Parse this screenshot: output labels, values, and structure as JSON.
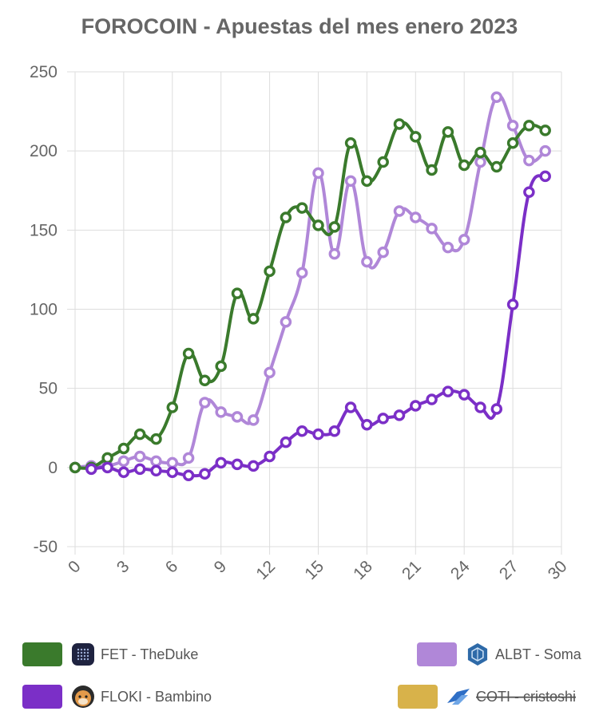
{
  "chart_data": {
    "type": "line",
    "title": "FOROCOIN - Apuestas del mes enero 2023",
    "xlim": [
      0,
      30
    ],
    "ylim": [
      -50,
      250
    ],
    "x_ticks": [
      "0",
      "3",
      "6",
      "9",
      "12",
      "15",
      "18",
      "21",
      "24",
      "27",
      "30"
    ],
    "y_ticks": [
      "250",
      "200",
      "150",
      "100",
      "50",
      "0",
      "-50"
    ],
    "series": [
      {
        "name": "FET - TheDuke",
        "color": "#3a7a2c",
        "icon": "fet-icon",
        "hidden": false,
        "x": [
          0,
          1,
          2,
          3,
          4,
          5,
          6,
          7,
          8,
          9,
          10,
          11,
          12,
          13,
          14,
          15,
          16,
          17,
          18,
          19,
          20,
          21,
          22,
          23,
          24,
          25,
          26,
          27,
          28,
          29
        ],
        "values": [
          0,
          0,
          6,
          12,
          21,
          18,
          38,
          72,
          55,
          64,
          110,
          94,
          124,
          158,
          164,
          153,
          152,
          205,
          181,
          193,
          217,
          209,
          188,
          212,
          191,
          199,
          190,
          205,
          216,
          213
        ]
      },
      {
        "name": "ALBT - Soma",
        "color": "#b087d8",
        "icon": "albt-icon",
        "hidden": false,
        "x": [
          0,
          1,
          2,
          3,
          4,
          5,
          6,
          7,
          8,
          9,
          10,
          11,
          12,
          13,
          14,
          15,
          16,
          17,
          18,
          19,
          20,
          21,
          22,
          23,
          24,
          25,
          26,
          27,
          28,
          29
        ],
        "values": [
          0,
          1,
          1,
          4,
          7,
          4,
          3,
          6,
          41,
          35,
          32,
          30,
          60,
          92,
          123,
          186,
          135,
          181,
          130,
          136,
          162,
          158,
          151,
          139,
          144,
          193,
          234,
          216,
          194,
          200
        ]
      },
      {
        "name": "FLOKI - Bambino",
        "color": "#7b2fc7",
        "icon": "floki-icon",
        "hidden": false,
        "x": [
          1,
          2,
          3,
          4,
          5,
          6,
          7,
          8,
          9,
          10,
          11,
          12,
          13,
          14,
          15,
          16,
          17,
          18,
          19,
          20,
          21,
          22,
          23,
          24,
          25,
          26,
          27,
          28,
          29
        ],
        "values": [
          -1,
          0,
          -3,
          -1,
          -2,
          -3,
          -5,
          -4,
          3,
          2,
          1,
          7,
          16,
          23,
          21,
          23,
          38,
          27,
          31,
          33,
          39,
          43,
          48,
          46,
          38,
          37,
          103,
          174,
          184
        ]
      },
      {
        "name": "COTI - cristoshi",
        "color": "#d8b24a",
        "icon": "coti-icon",
        "hidden": true,
        "x": [],
        "values": []
      }
    ],
    "legend_placement": "bottom"
  }
}
